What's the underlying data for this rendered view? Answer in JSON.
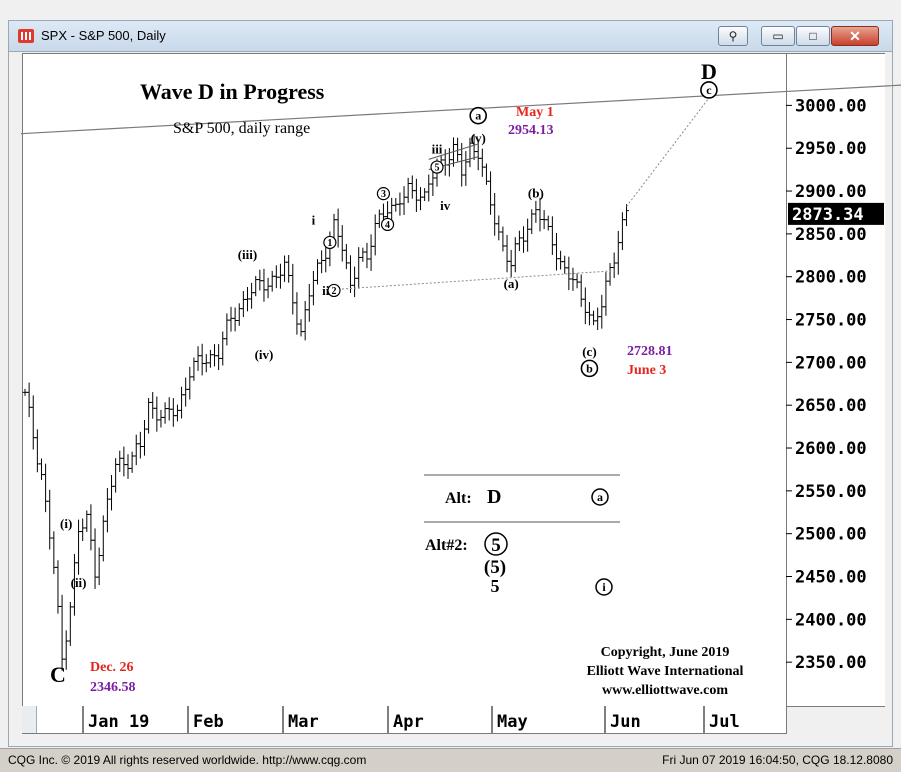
{
  "window": {
    "title": "SPX - S&P 500, Daily",
    "buttons": {
      "link": "⚲",
      "minimize": "▭",
      "maximize": "□",
      "close": "✕"
    }
  },
  "chart_data": {
    "type": "ohlc",
    "title": "Wave D in Progress",
    "subtitle": "S&P 500, daily range",
    "ylim": [
      2300,
      3060
    ],
    "y_ticks": [
      2350,
      2400,
      2450,
      2500,
      2550,
      2600,
      2650,
      2700,
      2750,
      2800,
      2850,
      2900,
      2950,
      3000
    ],
    "y_tick_labels": [
      "2350.00",
      "2400.00",
      "2450.00",
      "2500.00",
      "2550.00",
      "2600.00",
      "2650.00",
      "2700.00",
      "2750.00",
      "2800.00",
      "2850.00",
      "2900.00",
      "2950.00",
      "3000.00"
    ],
    "last_price": "2873.34",
    "month_labels": [
      "Jan 19",
      "Feb",
      "Mar",
      "Apr",
      "May",
      "Jun",
      "Jul"
    ],
    "series_anchors": [
      {
        "bar": 0,
        "price": 2660
      },
      {
        "bar": 4,
        "price": 2570
      },
      {
        "bar": 7,
        "price": 2460
      },
      {
        "bar": 9,
        "price": 2352
      },
      {
        "bar": 11,
        "price": 2420
      },
      {
        "bar": 13,
        "price": 2500
      },
      {
        "bar": 15,
        "price": 2517
      },
      {
        "bar": 17,
        "price": 2458
      },
      {
        "bar": 19,
        "price": 2510
      },
      {
        "bar": 22,
        "price": 2580
      },
      {
        "bar": 26,
        "price": 2590
      },
      {
        "bar": 28,
        "price": 2600
      },
      {
        "bar": 30,
        "price": 2650
      },
      {
        "bar": 34,
        "price": 2636
      },
      {
        "bar": 37,
        "price": 2645
      },
      {
        "bar": 40,
        "price": 2690
      },
      {
        "bar": 44,
        "price": 2705
      },
      {
        "bar": 47,
        "price": 2712
      },
      {
        "bar": 50,
        "price": 2750
      },
      {
        "bar": 54,
        "price": 2779
      },
      {
        "bar": 58,
        "price": 2793
      },
      {
        "bar": 61,
        "price": 2800
      },
      {
        "bar": 63,
        "price": 2810
      },
      {
        "bar": 65,
        "price": 2775
      },
      {
        "bar": 67,
        "price": 2735
      },
      {
        "bar": 69,
        "price": 2780
      },
      {
        "bar": 72,
        "price": 2820
      },
      {
        "bar": 75,
        "price": 2860
      },
      {
        "bar": 77,
        "price": 2832
      },
      {
        "bar": 79,
        "price": 2787
      },
      {
        "bar": 81,
        "price": 2830
      },
      {
        "bar": 83,
        "price": 2815
      },
      {
        "bar": 85,
        "price": 2860
      },
      {
        "bar": 88,
        "price": 2885
      },
      {
        "bar": 90,
        "price": 2875
      },
      {
        "bar": 93,
        "price": 2905
      },
      {
        "bar": 95,
        "price": 2900
      },
      {
        "bar": 97,
        "price": 2888
      },
      {
        "bar": 99,
        "price": 2920
      },
      {
        "bar": 101,
        "price": 2935
      },
      {
        "bar": 104,
        "price": 2945
      },
      {
        "bar": 106,
        "price": 2923
      },
      {
        "bar": 108,
        "price": 2954
      },
      {
        "bar": 110,
        "price": 2945
      },
      {
        "bar": 112,
        "price": 2900
      },
      {
        "bar": 114,
        "price": 2870
      },
      {
        "bar": 116,
        "price": 2835
      },
      {
        "bar": 118,
        "price": 2812
      },
      {
        "bar": 120,
        "price": 2842
      },
      {
        "bar": 122,
        "price": 2860
      },
      {
        "bar": 124,
        "price": 2880
      },
      {
        "bar": 126,
        "price": 2858
      },
      {
        "bar": 128,
        "price": 2845
      },
      {
        "bar": 130,
        "price": 2815
      },
      {
        "bar": 132,
        "price": 2800
      },
      {
        "bar": 134,
        "price": 2785
      },
      {
        "bar": 136,
        "price": 2770
      },
      {
        "bar": 138,
        "price": 2742
      },
      {
        "bar": 140,
        "price": 2765
      },
      {
        "bar": 142,
        "price": 2810
      },
      {
        "bar": 144,
        "price": 2845
      },
      {
        "bar": 146,
        "price": 2873
      }
    ],
    "trendlines": [
      {
        "from": {
          "bar": -1,
          "price": 2967
        },
        "to": {
          "bar": 214,
          "price": 3024
        }
      },
      {
        "from": {
          "bar": 75,
          "price": 2785
        },
        "to": {
          "bar": 143,
          "price": 2807
        }
      },
      {
        "from": {
          "bar": 146,
          "price": 2882
        },
        "to": {
          "bar": 167,
          "price": 3015
        }
      }
    ],
    "wave_labels": [
      {
        "text": "C",
        "bar": 8,
        "price": 2336,
        "style": "big"
      },
      {
        "text": "(i)",
        "bar": 10,
        "price": 2512,
        "style": "paren"
      },
      {
        "text": "(ii)",
        "bar": 13,
        "price": 2443,
        "style": "paren"
      },
      {
        "text": "(iii)",
        "bar": 54,
        "price": 2826,
        "style": "paren"
      },
      {
        "text": "(iv)",
        "bar": 58,
        "price": 2709,
        "style": "paren"
      },
      {
        "text": "i",
        "bar": 70,
        "price": 2866,
        "style": "roman"
      },
      {
        "text": "ii",
        "bar": 73,
        "price": 2784,
        "style": "roman"
      },
      {
        "text": "iii",
        "bar": 100,
        "price": 2949,
        "style": "roman"
      },
      {
        "text": "iv",
        "bar": 102,
        "price": 2883,
        "style": "roman"
      },
      {
        "text": "1",
        "bar": 74,
        "price": 2840,
        "style": "circle"
      },
      {
        "text": "2",
        "bar": 75,
        "price": 2784,
        "style": "circle"
      },
      {
        "text": "3",
        "bar": 87,
        "price": 2897,
        "style": "circle"
      },
      {
        "text": "4",
        "bar": 88,
        "price": 2861,
        "style": "circle"
      },
      {
        "text": "5",
        "bar": 100,
        "price": 2928,
        "style": "circle"
      },
      {
        "text": "a",
        "bar": 110,
        "price": 2988,
        "style": "circle-bold"
      },
      {
        "text": "(v)",
        "bar": 110,
        "price": 2962,
        "style": "paren"
      },
      {
        "text": "(b)",
        "bar": 124,
        "price": 2898,
        "style": "paren"
      },
      {
        "text": "(a)",
        "bar": 118,
        "price": 2792,
        "style": "paren"
      },
      {
        "text": "(c)",
        "bar": 137,
        "price": 2713,
        "style": "paren"
      },
      {
        "text": "b",
        "bar": 137,
        "price": 2693,
        "style": "circle-bold"
      },
      {
        "text": "D",
        "bar": 166,
        "price": 3040,
        "style": "big"
      },
      {
        "text": "c",
        "bar": 166,
        "price": 3018,
        "style": "circle-bold"
      }
    ],
    "annotations": {
      "may1_label": "May 1",
      "may1_value": "2954.13",
      "june3_value": "2728.81",
      "june3_label": "June 3",
      "dec26_label": "Dec. 26",
      "dec26_value": "2346.58"
    },
    "alt_box": {
      "alt_label": "Alt:",
      "alt_wave": "D",
      "alt_circle": "a",
      "alt2_label": "Alt#2:",
      "alt2_big": "5",
      "alt2_paren": "(5)",
      "alt2_plain": "5",
      "alt2_circle": "i"
    },
    "copyright": {
      "line1": "Copyright, June 2019",
      "line2": "Elliott Wave International",
      "line3": "www.elliottwave.com"
    },
    "colors": {
      "red": "#e8231f",
      "purple": "#7b1fa2",
      "line": "#8a8a8a",
      "dotted": "#888888"
    }
  },
  "status": {
    "left": "CQG Inc. © 2019 All rights reserved worldwide. http://www.cqg.com",
    "right": "Fri Jun 07 2019 16:04:50, CQG 18.12.8080"
  }
}
